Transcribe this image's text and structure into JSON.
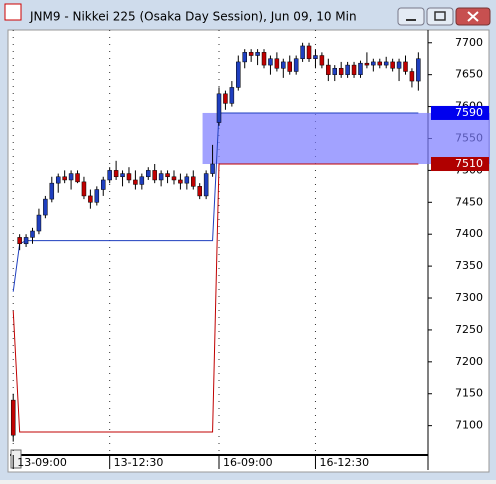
{
  "chart_data": {
    "type": "candlestick",
    "title": "JNM9 - Nikkei 225 (Osaka Day Session), Jun 09, 10 Min",
    "up_color": "#1f3fbf",
    "down_color": "#c00000",
    "open": [
      7140,
      7395,
      7385,
      7395,
      7405,
      7430,
      7455,
      7480,
      7490,
      7485,
      7495,
      7482,
      7460,
      7450,
      7470,
      7485,
      7500,
      7490,
      7495,
      7485,
      7478,
      7490,
      7500,
      7485,
      7495,
      7490,
      7485,
      7480,
      7490,
      7475,
      7460,
      7495,
      7575,
      7620,
      7605,
      7630,
      7670,
      7685,
      7680,
      7685,
      7665,
      7675,
      7660,
      7670,
      7655,
      7675,
      7695,
      7675,
      7680,
      7665,
      7650,
      7660,
      7650,
      7665,
      7650,
      7668,
      7665,
      7670,
      7665,
      7670,
      7660,
      7670,
      7655,
      7640
    ],
    "high": [
      7150,
      7400,
      7400,
      7410,
      7440,
      7460,
      7490,
      7495,
      7500,
      7500,
      7500,
      7490,
      7470,
      7475,
      7490,
      7505,
      7515,
      7500,
      7505,
      7500,
      7495,
      7505,
      7510,
      7500,
      7500,
      7500,
      7495,
      7495,
      7500,
      7480,
      7500,
      7540,
      7630,
      7625,
      7640,
      7680,
      7690,
      7690,
      7690,
      7690,
      7680,
      7685,
      7675,
      7680,
      7680,
      7700,
      7700,
      7690,
      7685,
      7675,
      7665,
      7670,
      7670,
      7670,
      7672,
      7685,
      7675,
      7675,
      7678,
      7675,
      7675,
      7680,
      7660,
      7685
    ],
    "low": [
      7075,
      7375,
      7380,
      7385,
      7400,
      7425,
      7450,
      7465,
      7480,
      7470,
      7480,
      7455,
      7440,
      7445,
      7460,
      7480,
      7485,
      7475,
      7480,
      7470,
      7470,
      7485,
      7480,
      7475,
      7480,
      7478,
      7470,
      7470,
      7470,
      7455,
      7455,
      7490,
      7570,
      7595,
      7600,
      7625,
      7660,
      7670,
      7665,
      7660,
      7650,
      7655,
      7645,
      7650,
      7650,
      7670,
      7670,
      7660,
      7660,
      7640,
      7640,
      7645,
      7645,
      7645,
      7645,
      7660,
      7655,
      7660,
      7660,
      7655,
      7640,
      7650,
      7630,
      7625
    ],
    "close": [
      7085,
      7385,
      7395,
      7405,
      7430,
      7455,
      7480,
      7490,
      7485,
      7495,
      7482,
      7460,
      7450,
      7470,
      7485,
      7500,
      7490,
      7495,
      7485,
      7478,
      7490,
      7500,
      7485,
      7495,
      7490,
      7485,
      7480,
      7490,
      7475,
      7460,
      7495,
      7510,
      7620,
      7605,
      7630,
      7670,
      7685,
      7680,
      7685,
      7665,
      7675,
      7660,
      7670,
      7655,
      7675,
      7695,
      7675,
      7680,
      7665,
      7650,
      7660,
      7650,
      7665,
      7650,
      7668,
      7665,
      7670,
      7665,
      7670,
      7660,
      7670,
      7655,
      7640,
      7675
    ],
    "lines": [
      {
        "color": "#1f3fbf",
        "values": [
          7310,
          7385,
          7390,
          7390,
          7390,
          7390,
          7390,
          7390,
          7390,
          7390,
          7390,
          7390,
          7390,
          7390,
          7390,
          7390,
          7390,
          7390,
          7390,
          7390,
          7390,
          7390,
          7390,
          7390,
          7390,
          7390,
          7390,
          7390,
          7390,
          7390,
          7390,
          7390,
          7590,
          7590,
          7590,
          7590,
          7590,
          7590,
          7590,
          7590,
          7590,
          7590,
          7590,
          7590,
          7590,
          7590,
          7590,
          7590,
          7590,
          7590,
          7590,
          7590,
          7590,
          7590,
          7590,
          7590,
          7590,
          7590,
          7590,
          7590,
          7590,
          7590,
          7590,
          7590
        ]
      },
      {
        "color": "#c00000",
        "values": [
          7280,
          7090,
          7090,
          7090,
          7090,
          7090,
          7090,
          7090,
          7090,
          7090,
          7090,
          7090,
          7090,
          7090,
          7090,
          7090,
          7090,
          7090,
          7090,
          7090,
          7090,
          7090,
          7090,
          7090,
          7090,
          7090,
          7090,
          7090,
          7090,
          7090,
          7090,
          7090,
          7510,
          7510,
          7510,
          7510,
          7510,
          7510,
          7510,
          7510,
          7510,
          7510,
          7510,
          7510,
          7510,
          7510,
          7510,
          7510,
          7510,
          7510,
          7510,
          7510,
          7510,
          7510,
          7510,
          7510,
          7510,
          7510,
          7510,
          7510,
          7510,
          7510,
          7510,
          7510
        ]
      }
    ],
    "band": {
      "low": 7510,
      "high": 7590,
      "color": "#7a7aff"
    },
    "ylim": [
      7054,
      7720
    ],
    "yticks": [
      7100,
      7150,
      7200,
      7250,
      7300,
      7350,
      7400,
      7450,
      7500,
      7550,
      7600,
      7650,
      7700
    ],
    "xlim": [
      -0.5,
      64.5
    ],
    "xticks": [
      {
        "value": 0,
        "label": "13-09:00"
      },
      {
        "value": 15,
        "label": "13-12:30"
      },
      {
        "value": 32,
        "label": "16-09:00"
      },
      {
        "value": 47,
        "label": "16-12:30"
      }
    ],
    "grid": true
  }
}
